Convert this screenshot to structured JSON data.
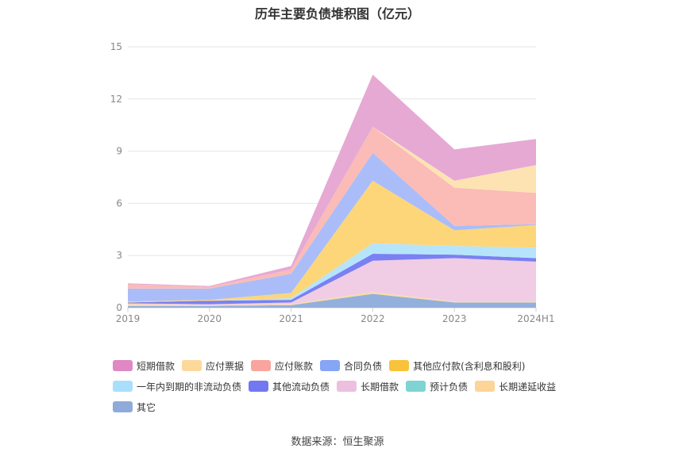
{
  "chart_data": {
    "type": "area",
    "stacked": true,
    "title": "历年主要负债堆积图（亿元）",
    "categories": [
      "2019",
      "2020",
      "2021",
      "2022",
      "2023",
      "2024H1"
    ],
    "yticks": [
      "0",
      "3",
      "6",
      "9",
      "12",
      "15"
    ],
    "ylim": [
      0,
      15
    ],
    "grid": true,
    "legend_position": "bottom",
    "series": [
      {
        "name": "其它",
        "color": "#93b0dc",
        "values": [
          0.1,
          0.1,
          0.15,
          0.8,
          0.3,
          0.3
        ]
      },
      {
        "name": "长期递延收益",
        "color": "#fddca0",
        "values": [
          0.1,
          0.05,
          0.05,
          0.1,
          0.05,
          0.05
        ]
      },
      {
        "name": "预计负债",
        "color": "#8ed8d8",
        "values": [
          0,
          0,
          0,
          0,
          0,
          0
        ]
      },
      {
        "name": "长期借款",
        "color": "#f0cde4",
        "values": [
          0.05,
          0.05,
          0.1,
          1.8,
          2.5,
          2.3
        ]
      },
      {
        "name": "其他流动负债",
        "color": "#7b80f2",
        "values": [
          0.05,
          0.2,
          0.15,
          0.4,
          0.2,
          0.2
        ]
      },
      {
        "name": "一年内到期的非流动负债",
        "color": "#b6e5fb",
        "values": [
          0,
          0,
          0.1,
          0.6,
          0.5,
          0.6
        ]
      },
      {
        "name": "其他应付款(含利息和股利)",
        "color": "#fdd67a",
        "values": [
          0.05,
          0.05,
          0.3,
          3.6,
          0.9,
          1.3
        ]
      },
      {
        "name": "合同负债",
        "color": "#aabdf8",
        "values": [
          0.75,
          0.65,
          1.1,
          1.6,
          0.25,
          0.05
        ]
      },
      {
        "name": "应付账款",
        "color": "#fbbbb6",
        "values": [
          0.25,
          0.1,
          0.25,
          1.5,
          2.2,
          1.8
        ]
      },
      {
        "name": "应付票据",
        "color": "#fde3b2",
        "values": [
          0,
          0,
          0,
          0,
          0.4,
          1.6
        ]
      },
      {
        "name": "短期借款",
        "color": "#e6a9d4",
        "values": [
          0.05,
          0.05,
          0.2,
          3.0,
          1.8,
          1.5
        ]
      }
    ],
    "legend_order": [
      "短期借款",
      "应付票据",
      "应付账款",
      "合同负债",
      "其他应付款(含利息和股利)",
      "一年内到期的非流动负债",
      "其他流动负债",
      "长期借款",
      "预计负债",
      "长期递延收益",
      "其它"
    ],
    "legend_colors": {
      "短期借款": "#df88c4",
      "应付票据": "#fcd89a",
      "应付账款": "#f9a59d",
      "合同负债": "#86a5f5",
      "其他应付款(含利息和股利)": "#f9c23c",
      "一年内到期的非流动负债": "#aadffb",
      "其他流动负债": "#7278f0",
      "长期借款": "#ecbfdf",
      "预计负债": "#7fd3d3",
      "长期递延收益": "#fdd598",
      "其它": "#8fabd9"
    }
  },
  "source_note": "数据来源：恒生聚源"
}
